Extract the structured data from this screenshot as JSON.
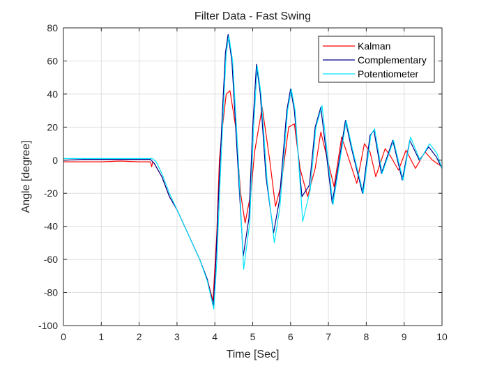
{
  "chart_data": {
    "type": "line",
    "title": "Filter Data - Fast Swing",
    "xlabel": "Time [Sec]",
    "ylabel": "Angle [degree]",
    "xlim": [
      0,
      10
    ],
    "ylim": [
      -100,
      80
    ],
    "xticks": [
      0,
      1,
      2,
      3,
      4,
      5,
      6,
      7,
      8,
      9,
      10
    ],
    "yticks": [
      -100,
      -80,
      -60,
      -40,
      -20,
      0,
      20,
      40,
      60,
      80
    ],
    "grid": true,
    "legend_position": "top-right",
    "series": [
      {
        "name": "Kalman",
        "color": "#ff0000",
        "x": [
          0,
          0.5,
          1.0,
          1.5,
          2.0,
          2.3,
          2.33,
          2.36,
          2.4,
          2.6,
          2.8,
          3.0,
          3.3,
          3.6,
          3.8,
          3.95,
          4.05,
          4.12,
          4.2,
          4.3,
          4.4,
          4.55,
          4.68,
          4.8,
          4.95,
          5.05,
          5.25,
          5.45,
          5.6,
          5.75,
          5.95,
          6.1,
          6.25,
          6.45,
          6.65,
          6.8,
          7.0,
          7.15,
          7.35,
          7.55,
          7.75,
          7.95,
          8.1,
          8.25,
          8.5,
          8.65,
          8.85,
          9.05,
          9.3,
          9.55,
          9.75,
          10.0
        ],
        "y": [
          -1,
          -1,
          -1,
          -0.5,
          -1,
          -1,
          -4,
          -1,
          -2,
          -10,
          -22,
          -30,
          -45,
          -60,
          -72,
          -85,
          -45,
          0,
          20,
          40,
          42,
          20,
          -20,
          -38,
          -20,
          5,
          32,
          0,
          -28,
          -15,
          20,
          22,
          -5,
          -22,
          -5,
          17,
          -2,
          -16,
          14,
          0,
          -14,
          10,
          5,
          -10,
          7,
          2,
          -6,
          6,
          -5,
          5,
          0,
          -4
        ]
      },
      {
        "name": "Complementary",
        "color": "#00008b",
        "x": [
          0,
          0.5,
          1.0,
          1.5,
          2.0,
          2.3,
          2.4,
          2.6,
          2.8,
          3.0,
          3.3,
          3.6,
          3.8,
          3.96,
          4.03,
          4.12,
          4.2,
          4.28,
          4.35,
          4.45,
          4.6,
          4.75,
          4.9,
          5.0,
          5.1,
          5.2,
          5.35,
          5.55,
          5.7,
          5.9,
          6.0,
          6.1,
          6.3,
          6.5,
          6.65,
          6.8,
          7.1,
          7.25,
          7.45,
          7.6,
          7.9,
          8.1,
          8.2,
          8.4,
          8.7,
          8.95,
          9.15,
          9.4,
          9.65,
          9.85,
          10.0
        ],
        "y": [
          0,
          0.5,
          0.5,
          0.5,
          0.5,
          0.5,
          -2,
          -10,
          -22,
          -30,
          -45,
          -60,
          -72,
          -88,
          -60,
          -10,
          30,
          65,
          76,
          60,
          0,
          -58,
          -35,
          20,
          58,
          40,
          -10,
          -44,
          -25,
          30,
          43,
          30,
          -22,
          -15,
          20,
          32,
          -26,
          -5,
          24,
          8,
          -20,
          15,
          18,
          -8,
          12,
          -12,
          12,
          0,
          8,
          2,
          -5
        ]
      },
      {
        "name": "Potentiometer",
        "color": "#00e5ff",
        "x": [
          0,
          0.5,
          1.0,
          1.5,
          2.0,
          2.35,
          2.45,
          2.6,
          2.8,
          3.0,
          3.3,
          3.6,
          3.8,
          3.97,
          4.05,
          4.14,
          4.22,
          4.3,
          4.37,
          4.47,
          4.62,
          4.76,
          4.92,
          5.02,
          5.12,
          5.22,
          5.38,
          5.57,
          5.72,
          5.92,
          6.02,
          6.12,
          6.32,
          6.52,
          6.67,
          6.83,
          7.12,
          7.27,
          7.47,
          7.62,
          7.92,
          8.12,
          8.22,
          8.42,
          8.72,
          8.97,
          9.17,
          9.42,
          9.67,
          9.87,
          10.0
        ],
        "y": [
          1,
          1,
          1,
          1,
          1,
          1,
          -1,
          -8,
          -20,
          -30,
          -45,
          -60,
          -73,
          -90,
          -62,
          -12,
          28,
          65,
          75,
          60,
          0,
          -66,
          -38,
          18,
          57,
          40,
          -12,
          -50,
          -28,
          30,
          43,
          30,
          -37,
          -18,
          20,
          33,
          -27,
          -5,
          24,
          8,
          -20,
          15,
          19,
          -8,
          12,
          -12,
          14,
          0,
          10,
          4,
          -5
        ]
      }
    ]
  }
}
